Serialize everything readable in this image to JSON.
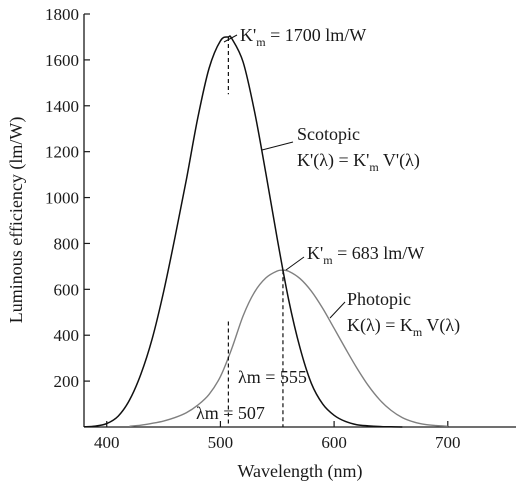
{
  "chart_data": {
    "type": "line",
    "title": "",
    "xlabel": "Wavelength (nm)",
    "ylabel": "Luminous efficiency (lm/W)",
    "xlim": [
      380,
      760
    ],
    "ylim": [
      0,
      1800
    ],
    "x_ticks": [
      400,
      500,
      600,
      700
    ],
    "y_ticks": [
      200,
      400,
      600,
      800,
      1000,
      1200,
      1400,
      1600,
      1800
    ],
    "grid": false,
    "series": [
      {
        "name": "Scotopic",
        "color": "#111111",
        "x": [
          380,
          390,
          400,
          410,
          420,
          430,
          440,
          450,
          460,
          470,
          480,
          490,
          500,
          507,
          510,
          520,
          530,
          540,
          550,
          560,
          570,
          580,
          590,
          600,
          610,
          620,
          630,
          640,
          650,
          660
        ],
        "y": [
          1,
          4,
          15,
          47,
          117,
          230,
          385,
          589,
          826,
          1077,
          1345,
          1563,
          1683,
          1700,
          1693,
          1590,
          1375,
          1105,
          820,
          555,
          345,
          190,
          100,
          51,
          24,
          10,
          5,
          2,
          1,
          0
        ]
      },
      {
        "name": "Photopic",
        "color": "#808080",
        "x": [
          420,
          430,
          440,
          450,
          460,
          470,
          480,
          490,
          500,
          510,
          520,
          530,
          540,
          550,
          555,
          560,
          570,
          580,
          590,
          600,
          610,
          620,
          630,
          640,
          650,
          660,
          670,
          680,
          690,
          700
        ],
        "y": [
          3,
          8,
          16,
          26,
          41,
          62,
          95,
          142,
          220,
          342,
          485,
          588,
          650,
          680,
          683,
          679,
          647,
          592,
          517,
          430,
          342,
          257,
          181,
          119,
          73,
          41,
          22,
          11,
          6,
          3
        ]
      }
    ],
    "annotations": {
      "scotopic_peak": {
        "prefix": "K'",
        "sub": "m",
        "rest": " = 1700 lm/W",
        "x": 507,
        "y": 1700
      },
      "photopic_peak": {
        "prefix": "K'",
        "sub": "m",
        "rest": " = 683 lm/W",
        "x": 555,
        "y": 683
      },
      "scotopic_label": "Scotopic",
      "scotopic_formula": {
        "a": "K'(λ) = K'",
        "sub": "m",
        "b": " V'(λ)"
      },
      "photopic_label": "Photopic",
      "photopic_formula": {
        "a": "K(λ) = K",
        "sub": "m",
        "b": " V(λ)"
      },
      "lambda_scotopic": "λm = 507",
      "lambda_photopic": "λm = 555"
    }
  }
}
